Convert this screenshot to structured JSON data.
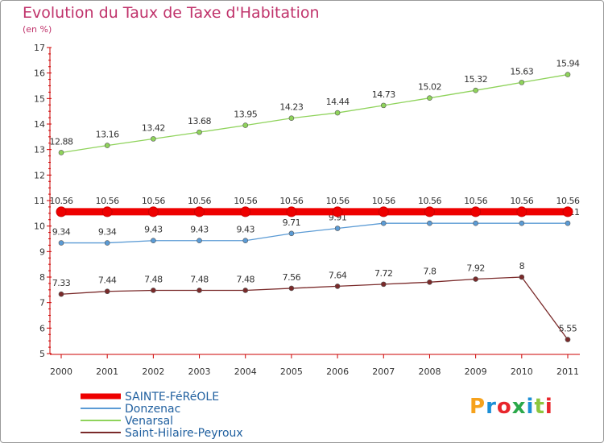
{
  "title": "Evolution du Taux de Taxe d'Habitation",
  "subtitle": "(en %)",
  "logo": {
    "text": "Proxiti",
    "colors": [
      "#f6a21c",
      "#1c8fd6",
      "#e8262c",
      "#2ba84a",
      "#1c8fd6",
      "#8cc63f",
      "#e8262c"
    ]
  },
  "chart_data": {
    "type": "line",
    "title": "Evolution du Taux de Taxe d'Habitation",
    "ylabel": "(en %)",
    "xlabel": "",
    "x": [
      "2000",
      "2001",
      "2002",
      "2003",
      "2004",
      "2005",
      "2006",
      "2007",
      "2008",
      "2009",
      "2010",
      "2011"
    ],
    "ylim": [
      5,
      17
    ],
    "yticks": [
      "5",
      "6",
      "7",
      "8",
      "9",
      "10",
      "11",
      "12",
      "13",
      "14",
      "15",
      "16",
      "17"
    ],
    "grid": false,
    "legend_position": "bottom-left",
    "series": [
      {
        "name": "SAINTE-FéRéOLE",
        "color": "#ee0000",
        "values": [
          10.56,
          10.56,
          10.56,
          10.56,
          10.56,
          10.56,
          10.56,
          10.56,
          10.56,
          10.56,
          10.56,
          10.56
        ],
        "labels": [
          "10.56",
          "10.56",
          "10.56",
          "10.56",
          "10.56",
          "10.56",
          "10.56",
          "10.56",
          "10.56",
          "10.56",
          "10.56",
          "10.56"
        ]
      },
      {
        "name": "Donzenac",
        "color": "#5b9bd5",
        "values": [
          9.34,
          9.34,
          9.43,
          9.43,
          9.43,
          9.71,
          9.91,
          10.11,
          10.11,
          10.11,
          10.11,
          10.11
        ],
        "labels": [
          "9.34",
          "9.34",
          "9.43",
          "9.43",
          "9.43",
          "9.71",
          "9.91",
          "10.11",
          "10.11",
          "10.11",
          "10.11",
          "10.11"
        ]
      },
      {
        "name": "Venarsal",
        "color": "#8fd35b",
        "values": [
          12.88,
          13.16,
          13.42,
          13.68,
          13.95,
          14.23,
          14.44,
          14.73,
          15.02,
          15.32,
          15.63,
          15.94
        ],
        "labels": [
          "12.88",
          "13.16",
          "13.42",
          "13.68",
          "13.95",
          "14.23",
          "14.44",
          "14.73",
          "15.02",
          "15.32",
          "15.63",
          "15.94"
        ]
      },
      {
        "name": "Saint-Hilaire-Peyroux",
        "color": "#7a2a2a",
        "values": [
          7.33,
          7.44,
          7.48,
          7.48,
          7.48,
          7.56,
          7.64,
          7.72,
          7.8,
          7.92,
          8,
          5.55
        ],
        "labels": [
          "7.33",
          "7.44",
          "7.48",
          "7.48",
          "7.48",
          "7.56",
          "7.64",
          "7.72",
          "7.8",
          "7.92",
          "8",
          "5.55"
        ]
      }
    ]
  }
}
